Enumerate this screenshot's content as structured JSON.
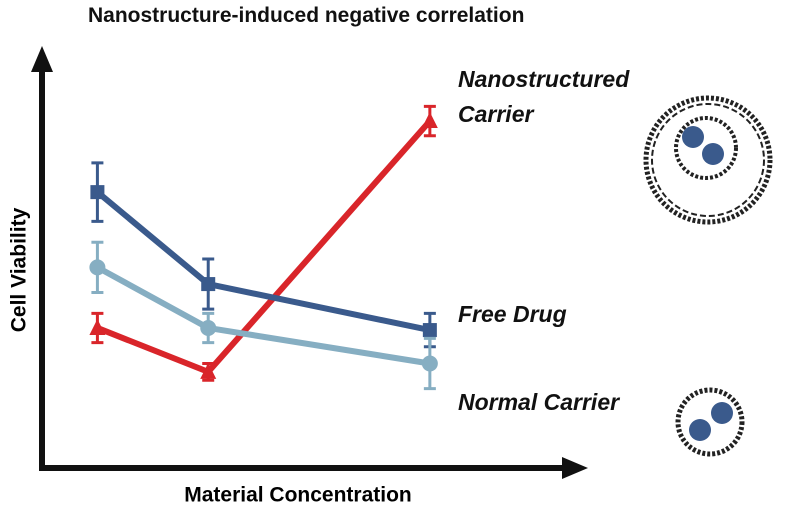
{
  "chart_data": {
    "type": "line",
    "title": "Nanostructure-induced negative correlation",
    "xlabel": "Material Concentration",
    "ylabel": "Cell Viability",
    "x": [
      1,
      2,
      4
    ],
    "xlim": [
      0.5,
      5.4
    ],
    "ylim": [
      0,
      100
    ],
    "series": [
      {
        "name": "Nanostructured Carrier",
        "color": "#d9252a",
        "marker": "triangle",
        "values": [
          33.5,
          23,
          83
        ],
        "errors": [
          3.5,
          2,
          3.5
        ]
      },
      {
        "name": "Free Drug",
        "color": "#3a5a8c",
        "marker": "square",
        "values": [
          66,
          44,
          33
        ],
        "errors": [
          7,
          6,
          4
        ]
      },
      {
        "name": "Normal Carrier",
        "color": "#86aec2",
        "marker": "circle",
        "values": [
          48,
          33.5,
          25
        ],
        "errors": [
          6,
          3.5,
          6
        ]
      }
    ]
  }
}
